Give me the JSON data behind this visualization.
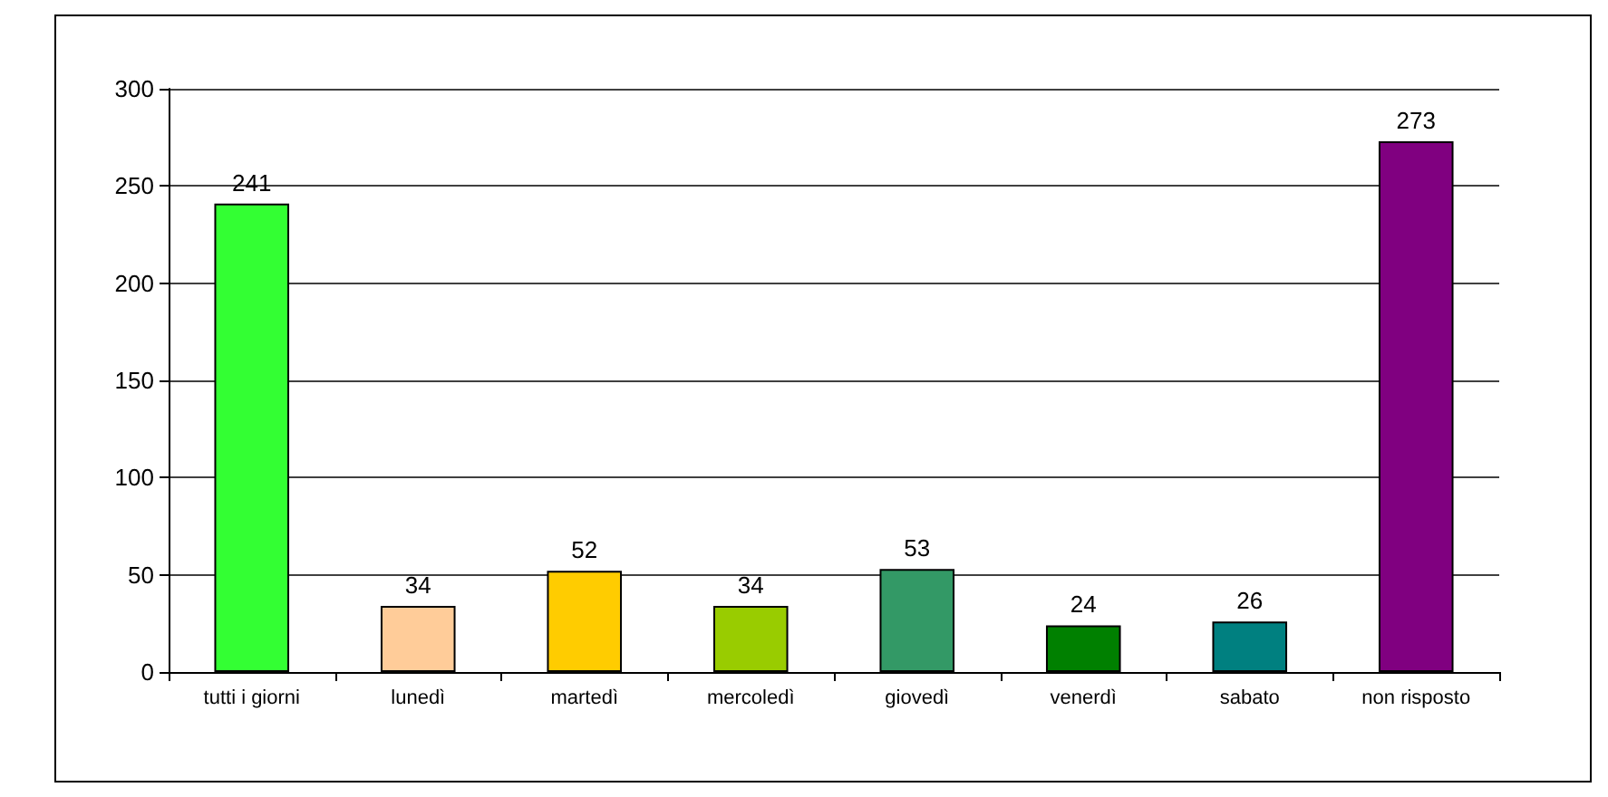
{
  "chart_data": {
    "type": "bar",
    "categories": [
      "tutti i giorni",
      "lunedì",
      "martedì",
      "mercoledì",
      "giovedì",
      "venerdì",
      "sabato",
      "non risposto"
    ],
    "values": [
      241,
      34,
      52,
      34,
      53,
      24,
      26,
      273
    ],
    "colors": [
      "#33ff33",
      "#ffcc99",
      "#ffcc00",
      "#99cc00",
      "#339966",
      "#008000",
      "#008080",
      "#800080"
    ],
    "ylim": [
      0,
      300
    ],
    "yticks": [
      0,
      50,
      100,
      150,
      200,
      250,
      300
    ],
    "grid": "y",
    "data_labels": true
  }
}
